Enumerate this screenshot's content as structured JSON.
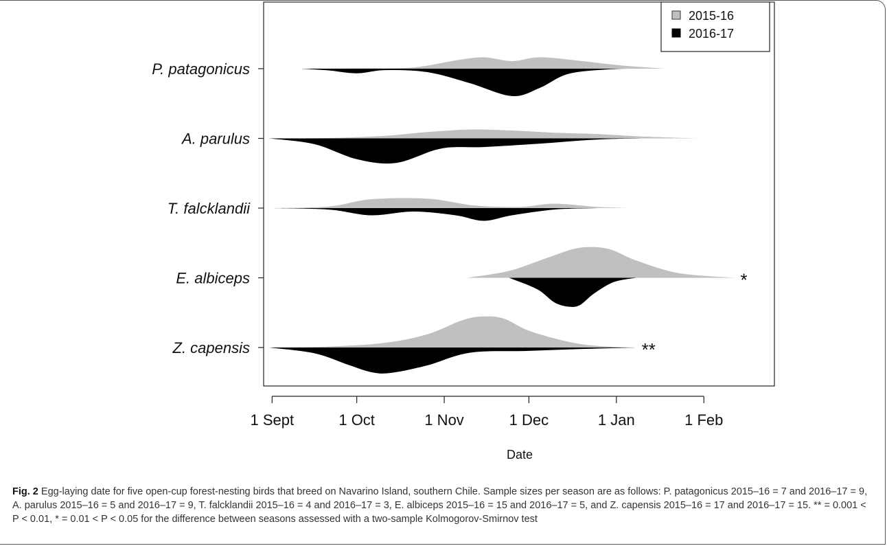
{
  "chart_data": {
    "type": "violin",
    "orientation": "horizontal",
    "xlabel": "Date",
    "x_tick_labels": [
      "1 Sept",
      "1 Oct",
      "1 Nov",
      "1 Dec",
      "1 Jan",
      "1 Feb"
    ],
    "x_tick_dates": [
      "2000-09-01",
      "2000-10-01",
      "2000-11-01",
      "2000-12-01",
      "2001-01-01",
      "2001-02-01"
    ],
    "xlim": [
      "2000-08-29",
      "2001-02-26"
    ],
    "legend_position": "top-right",
    "series": [
      {
        "name": "2015-16",
        "color": "#c0c0c0",
        "side": "upper"
      },
      {
        "name": "2016-17",
        "color": "#000000",
        "side": "lower"
      }
    ],
    "categories": [
      {
        "label": "P. patagonicus",
        "significance": "",
        "upper": {
          "x": [
            "2000-09-11",
            "2000-10-01",
            "2000-10-21",
            "2000-11-05",
            "2000-11-15",
            "2000-11-25",
            "2000-12-05",
            "2000-12-20",
            "2001-01-03",
            "2001-01-18"
          ],
          "y": [
            0,
            0.01,
            0.04,
            0.26,
            0.36,
            0.24,
            0.36,
            0.24,
            0.1,
            0
          ]
        },
        "lower": {
          "x": [
            "2000-09-11",
            "2000-09-21",
            "2000-10-01",
            "2000-10-11",
            "2000-10-26",
            "2000-11-10",
            "2000-11-25",
            "2000-12-05",
            "2000-12-15",
            "2000-12-30",
            "2001-01-10"
          ],
          "y": [
            0,
            0.06,
            0.16,
            0.05,
            0.12,
            0.5,
            0.95,
            0.66,
            0.18,
            0.02,
            0
          ]
        }
      },
      {
        "label": "A. parulus",
        "significance": "",
        "upper": {
          "x": [
            "2000-08-31",
            "2000-09-21",
            "2000-10-11",
            "2000-10-26",
            "2000-11-10",
            "2000-11-25",
            "2000-12-10",
            "2000-12-25",
            "2001-01-10",
            "2001-01-30"
          ],
          "y": [
            0,
            0.01,
            0.08,
            0.2,
            0.28,
            0.25,
            0.18,
            0.14,
            0.06,
            0
          ]
        },
        "lower": {
          "x": [
            "2000-08-31",
            "2000-09-16",
            "2000-10-01",
            "2000-10-15",
            "2000-10-31",
            "2000-11-15",
            "2000-12-05",
            "2000-12-25",
            "2001-01-10"
          ],
          "y": [
            0,
            0.2,
            0.72,
            0.85,
            0.35,
            0.3,
            0.18,
            0.04,
            0
          ]
        }
      },
      {
        "label": "T. falcklandii",
        "significance": "",
        "upper": {
          "x": [
            "2000-08-31",
            "2000-09-21",
            "2000-10-06",
            "2000-10-26",
            "2000-11-12",
            "2000-11-28",
            "2000-12-10",
            "2000-12-25",
            "2001-01-05"
          ],
          "y": [
            0,
            0.05,
            0.28,
            0.3,
            0.08,
            0.04,
            0.14,
            0.04,
            0
          ]
        },
        "lower": {
          "x": [
            "2000-08-31",
            "2000-09-21",
            "2000-10-06",
            "2000-10-21",
            "2000-11-05",
            "2000-11-15",
            "2000-11-25",
            "2000-12-10",
            "2000-12-25"
          ],
          "y": [
            0,
            0.05,
            0.25,
            0.12,
            0.25,
            0.44,
            0.25,
            0.05,
            0
          ]
        }
      },
      {
        "label": "E. albiceps",
        "significance": "*",
        "upper": {
          "x": [
            "2000-11-09",
            "2000-11-24",
            "2000-12-09",
            "2000-12-19",
            "2000-12-29",
            "2001-01-08",
            "2001-01-23",
            "2001-02-12"
          ],
          "y": [
            0,
            0.22,
            0.68,
            0.95,
            0.92,
            0.55,
            0.15,
            0
          ]
        },
        "lower": {
          "x": [
            "2000-11-24",
            "2000-12-04",
            "2000-12-10",
            "2000-12-15",
            "2000-12-19",
            "2000-12-24",
            "2000-12-31",
            "2001-01-08"
          ],
          "y": [
            0,
            0.4,
            0.85,
            1.0,
            0.95,
            0.55,
            0.15,
            0
          ]
        }
      },
      {
        "label": "Z. capensis",
        "significance": "**",
        "upper": {
          "x": [
            "2000-08-31",
            "2000-09-21",
            "2000-10-11",
            "2000-10-26",
            "2000-11-07",
            "2000-11-14",
            "2000-11-22",
            "2000-12-02",
            "2000-12-20",
            "2001-01-08"
          ],
          "y": [
            0,
            0.03,
            0.15,
            0.42,
            0.85,
            0.98,
            0.92,
            0.5,
            0.1,
            0
          ]
        },
        "lower": {
          "x": [
            "2000-08-31",
            "2000-09-16",
            "2000-09-28",
            "2000-10-06",
            "2000-10-13",
            "2000-10-26",
            "2000-11-10",
            "2000-11-30",
            "2000-12-20",
            "2001-01-08"
          ],
          "y": [
            0,
            0.2,
            0.6,
            0.85,
            0.88,
            0.62,
            0.18,
            0.12,
            0.05,
            0
          ]
        }
      }
    ]
  },
  "caption": {
    "label": "Fig. 2",
    "text": "Egg-laying date for five open-cup forest-nesting birds that breed on Navarino Island, southern Chile. Sample sizes per season are as follows: P. patagonicus 2015–16 = 7 and 2016–17 = 9, A. parulus 2015–16 = 5 and 2016–17 = 9, T. falcklandii 2015–16 = 4 and 2016–17 = 3, E. albiceps 2015–16 = 15 and 2016–17 = 5, and Z. capensis 2015–16 = 17 and 2016–17 = 15. ** = 0.001 < P < 0.01, * = 0.01 < P < 0.05 for the difference between seasons assessed with a two-sample Kolmogorov-Smirnov test"
  }
}
